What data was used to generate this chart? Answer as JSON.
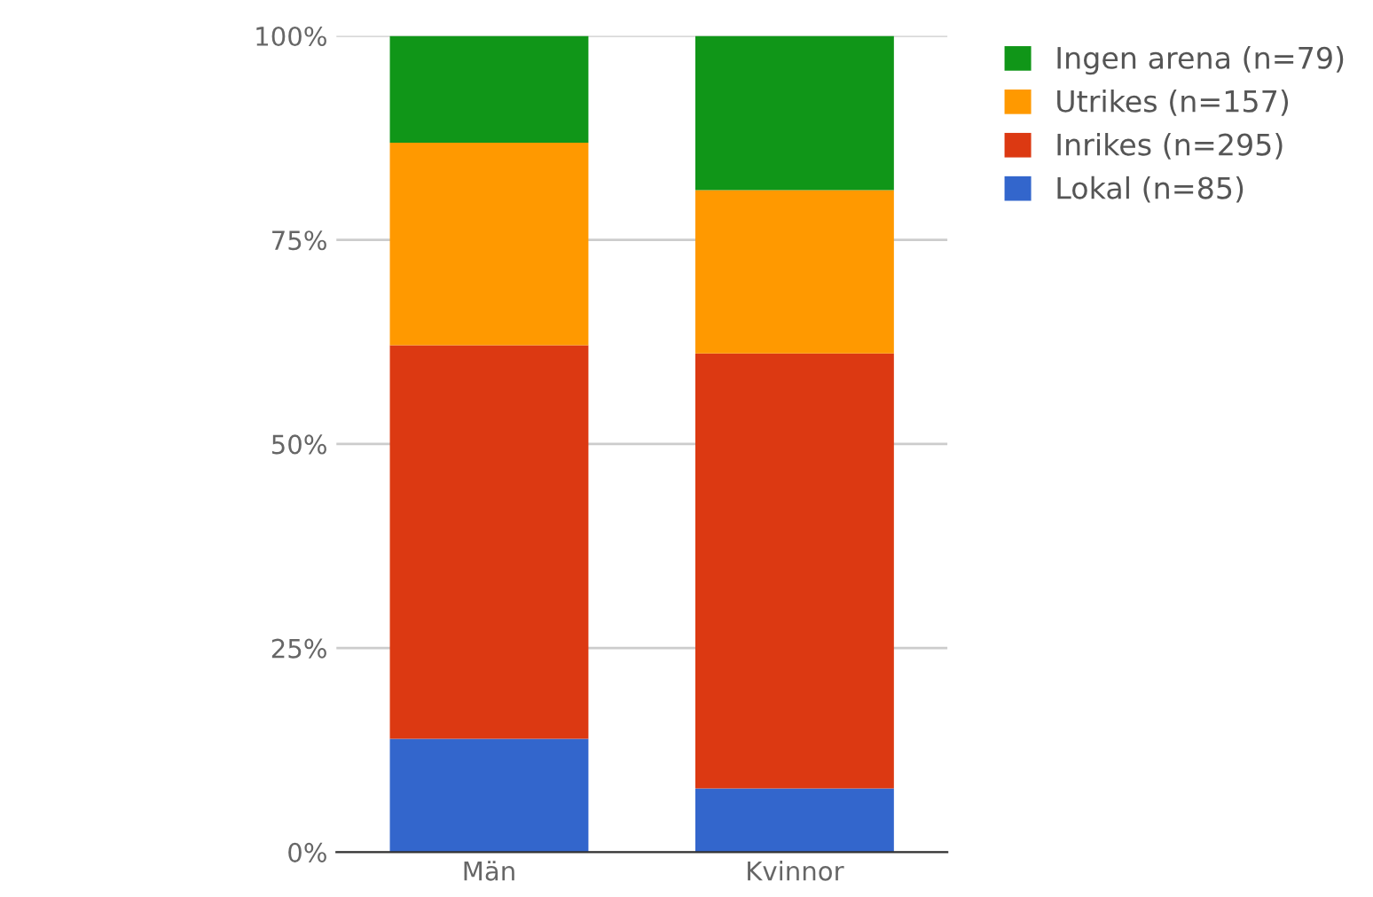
{
  "chart_data": {
    "type": "bar",
    "stacked": true,
    "categories": [
      "Män",
      "Kvinnor"
    ],
    "series": [
      {
        "name": "Lokal (n=85)",
        "color": "#3366cc",
        "values": [
          13.9,
          7.8
        ]
      },
      {
        "name": "Inrikes (n=295)",
        "color": "#dc3912",
        "values": [
          48.2,
          53.3
        ]
      },
      {
        "name": "Utrikes (n=157)",
        "color": "#ff9900",
        "values": [
          24.8,
          20.0
        ]
      },
      {
        "name": "Ingen arena (n=79)",
        "color": "#109618",
        "values": [
          13.1,
          18.9
        ]
      }
    ],
    "ylim": [
      0,
      100
    ],
    "yticks": [
      {
        "value": 0,
        "label": "0%"
      },
      {
        "value": 25,
        "label": "25%"
      },
      {
        "value": 50,
        "label": "50%"
      },
      {
        "value": 75,
        "label": "75%"
      },
      {
        "value": 100,
        "label": "100%"
      }
    ],
    "grid": "y",
    "legend": "right"
  }
}
